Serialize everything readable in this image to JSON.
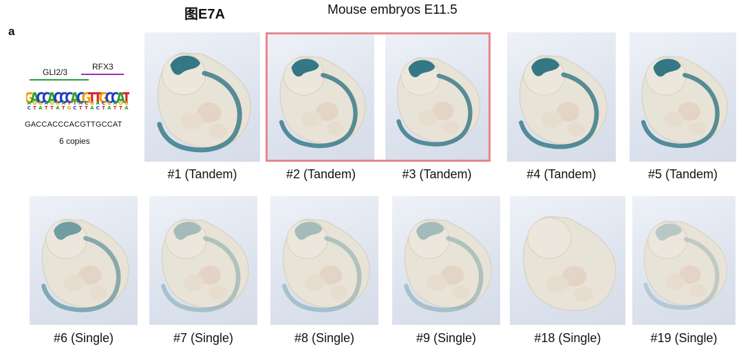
{
  "figure": {
    "title": "图E7A",
    "subtitle": "Mouse embryos E11.5",
    "panel_letter": "a"
  },
  "motif": {
    "gli_label": "GLI2/3",
    "rfx_label": "RFX3",
    "logo_text": "GACCACCCACGTTGCCAT",
    "sequence": "GACCACCCACGTTGCCAT",
    "copies": "6 copies"
  },
  "colors": {
    "gli_line": "#2a9d3a",
    "rfx_line": "#9b2fae",
    "highlight_border": "#e8868c",
    "stain": "#1f6b7a"
  },
  "top_row": [
    {
      "caption": "#1 (Tandem)",
      "stain": "strong"
    },
    {
      "caption": "#2 (Tandem)",
      "stain": "strong"
    },
    {
      "caption": "#3 (Tandem)",
      "stain": "strong"
    },
    {
      "caption": "#4 (Tandem)",
      "stain": "strong"
    },
    {
      "caption": "#5 (Tandem)",
      "stain": "strong"
    }
  ],
  "bottom_row": [
    {
      "caption": "#6 (Single)",
      "stain": "medium"
    },
    {
      "caption": "#7 (Single)",
      "stain": "weak"
    },
    {
      "caption": "#8 (Single)",
      "stain": "weak"
    },
    {
      "caption": "#9 (Single)",
      "stain": "weak"
    },
    {
      "caption": "#18 (Single)",
      "stain": "none"
    },
    {
      "caption": "#19 (Single)",
      "stain": "faint"
    }
  ]
}
